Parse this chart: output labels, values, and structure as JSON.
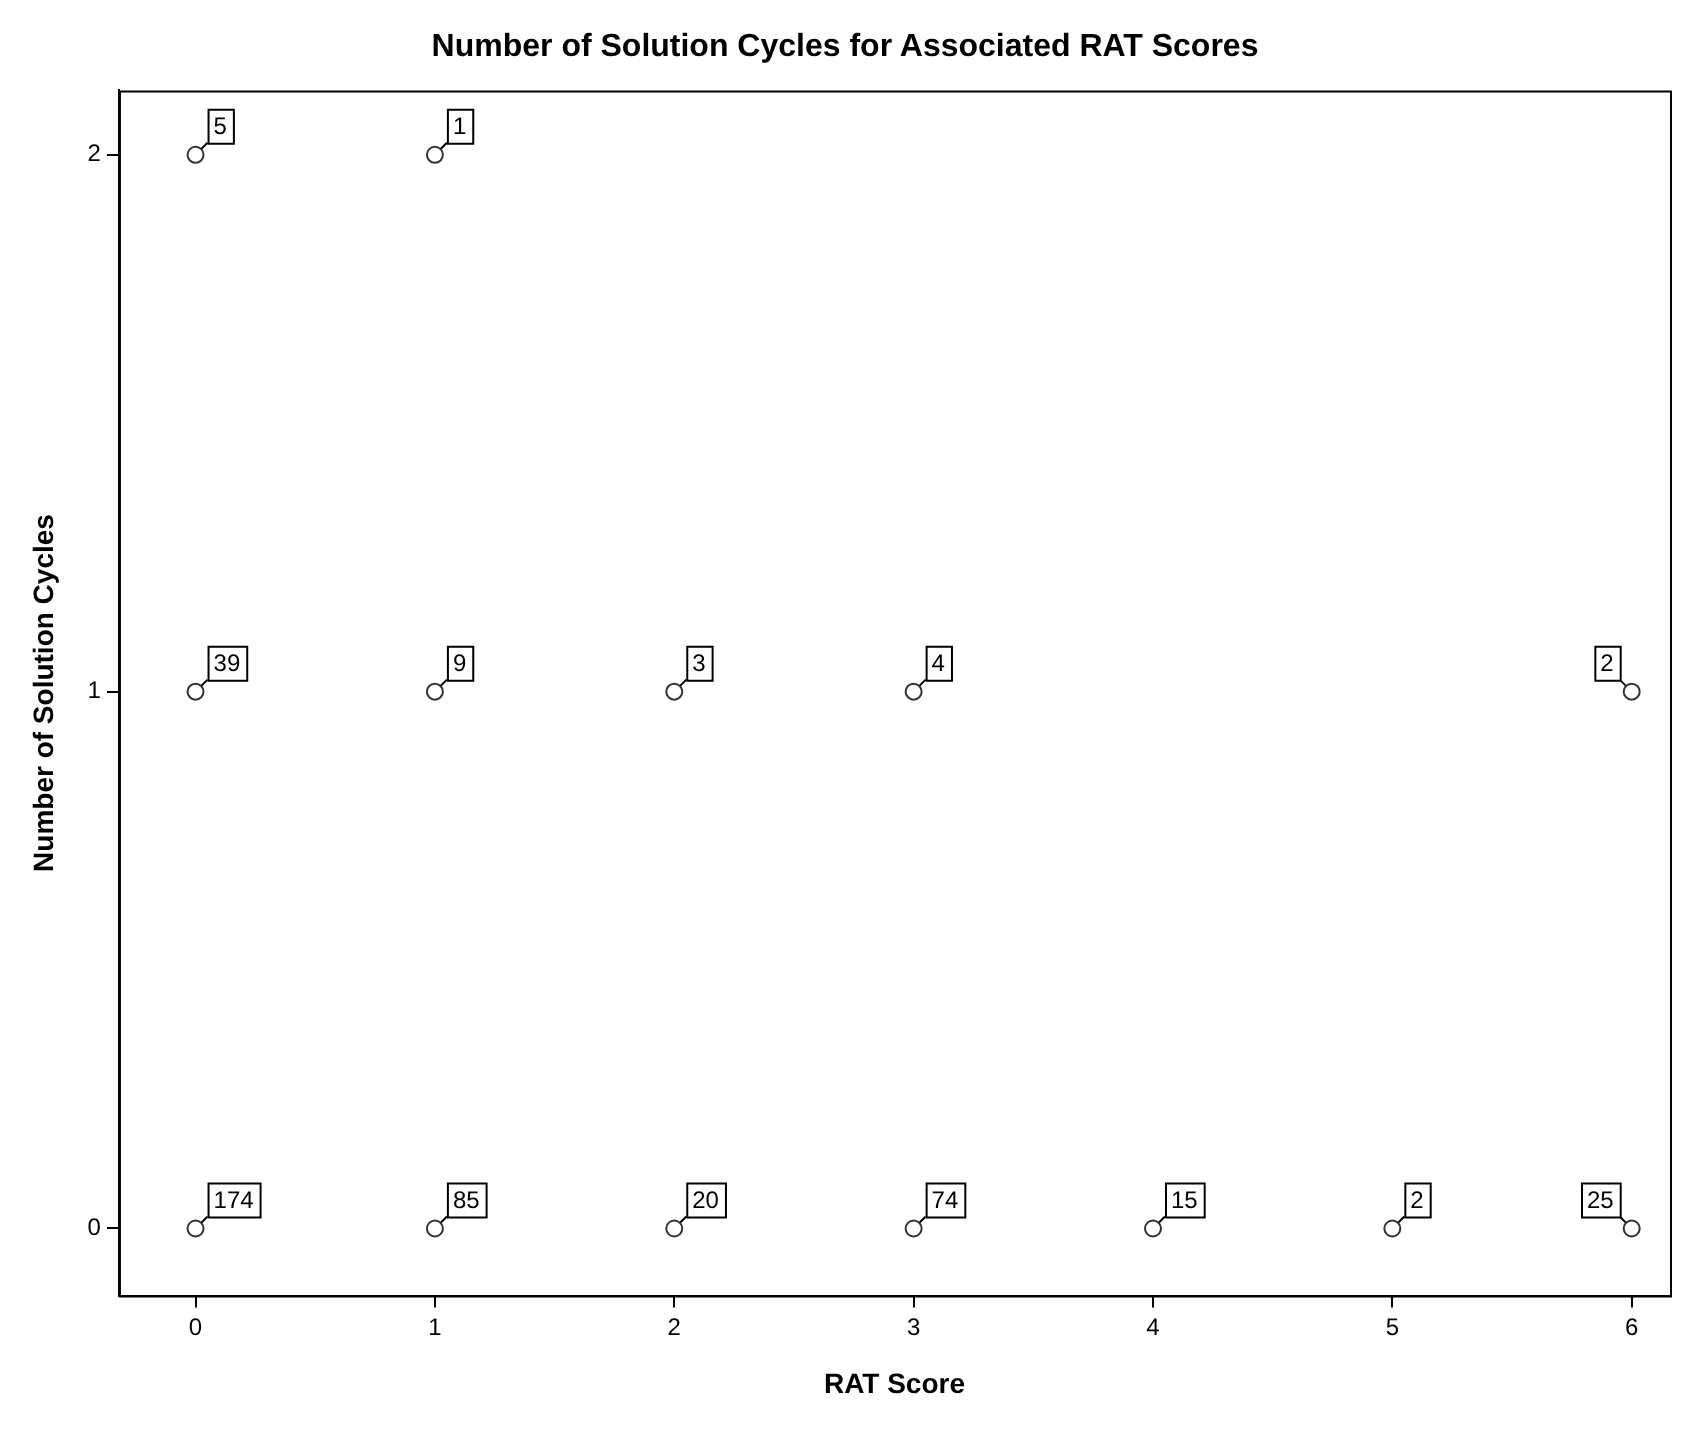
{
  "chart_data": {
    "type": "scatter",
    "title": "Number of Solution Cycles for Associated RAT Scores",
    "xlabel": "RAT Score",
    "ylabel": "Number of Solution Cycles",
    "series": [
      {
        "color": "#333333",
        "x": [
          0,
          1,
          0,
          1,
          2,
          3,
          6,
          0,
          1,
          2,
          3,
          4,
          5,
          6
        ],
        "values": [
          2,
          2,
          1,
          1,
          1,
          1,
          1,
          0,
          0,
          0,
          0,
          0,
          0,
          0
        ]
      }
    ],
    "xlim": [
      -0.32,
      6.16
    ],
    "xticks": [
      0,
      1,
      2,
      3,
      4,
      5,
      6
    ],
    "ylim": [
      -0.125,
      2.12
    ],
    "yticks": [
      0,
      1,
      2
    ],
    "grid": false,
    "legend": false,
    "marker": "circle",
    "annotations": [
      {
        "text": "5",
        "x": 0,
        "y": 2
      },
      {
        "text": "1",
        "x": 1,
        "y": 2
      },
      {
        "text": "39",
        "x": 0,
        "y": 1
      },
      {
        "text": "9",
        "x": 1,
        "y": 1
      },
      {
        "text": "3",
        "x": 2,
        "y": 1
      },
      {
        "text": "4",
        "x": 3,
        "y": 1
      },
      {
        "text": "2",
        "x": 6,
        "y": 1
      },
      {
        "text": "174",
        "x": 0,
        "y": 0
      },
      {
        "text": "85",
        "x": 1,
        "y": 0
      },
      {
        "text": "20",
        "x": 2,
        "y": 0
      },
      {
        "text": "74",
        "x": 3,
        "y": 0
      },
      {
        "text": "15",
        "x": 4,
        "y": 0
      },
      {
        "text": "2",
        "x": 5,
        "y": 0
      },
      {
        "text": "25",
        "x": 6,
        "y": 0
      }
    ]
  }
}
